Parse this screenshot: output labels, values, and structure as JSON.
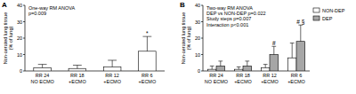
{
  "chart_data": [
    {
      "type": "bar",
      "title": "A",
      "y_label": "Non-aerated lung tissue (% of lung)",
      "categories": [
        "RR 24 NO ECMO",
        "RR 18 +ECMO",
        "RR 12 +ECMO",
        "RR 6 +ECMO"
      ],
      "values": [
        2,
        1.5,
        2.5,
        12
      ],
      "errors": [
        2,
        2,
        4,
        9
      ],
      "significance": [
        null,
        null,
        null,
        "*"
      ],
      "color": "#ffffff",
      "ylim": [
        0,
        40
      ],
      "yticks": [
        0,
        10,
        20,
        30,
        40
      ],
      "annotations": [
        "One-way RM ANOVA",
        "p=0.009"
      ]
    },
    {
      "type": "bar",
      "title": "B",
      "y_label": "Non-aerated lung tissue (% of lung)",
      "categories": [
        "RR 24 NO ECMO",
        "RR 18 +ECMO",
        "RR 12 +ECMO",
        "RR 6 +ECMO"
      ],
      "series": [
        {
          "name": "NON-DEP",
          "color": "#ffffff",
          "values": [
            1,
            1,
            2,
            8
          ],
          "errors": [
            2,
            1.5,
            2,
            9
          ],
          "significance": [
            null,
            null,
            null,
            null
          ]
        },
        {
          "name": "DEP",
          "color": "#a6a6a6",
          "values": [
            3,
            3,
            10,
            18
          ],
          "errors": [
            3,
            3,
            5,
            10
          ],
          "significance": [
            null,
            null,
            "#",
            "# §"
          ]
        }
      ],
      "legend": "right",
      "ylim": [
        0,
        40
      ],
      "yticks": [
        0,
        10,
        20,
        30,
        40
      ],
      "annotations": [
        "Two-way RM ANOVA",
        "DEP vs NON-DEP p=0.022",
        "Study steps p=0.007",
        "Interaction p<0.001"
      ]
    }
  ]
}
